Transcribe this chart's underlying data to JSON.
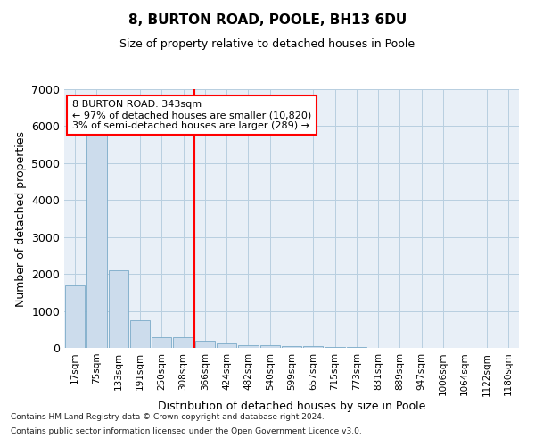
{
  "title1": "8, BURTON ROAD, POOLE, BH13 6DU",
  "title2": "Size of property relative to detached houses in Poole",
  "xlabel": "Distribution of detached houses by size in Poole",
  "ylabel": "Number of detached properties",
  "bin_labels": [
    "17sqm",
    "75sqm",
    "133sqm",
    "191sqm",
    "250sqm",
    "308sqm",
    "366sqm",
    "424sqm",
    "482sqm",
    "540sqm",
    "599sqm",
    "657sqm",
    "715sqm",
    "773sqm",
    "831sqm",
    "889sqm",
    "947sqm",
    "1006sqm",
    "1064sqm",
    "1122sqm",
    "1180sqm"
  ],
  "bar_values": [
    1700,
    5800,
    2100,
    750,
    300,
    280,
    200,
    120,
    80,
    65,
    50,
    38,
    28,
    18,
    12,
    8,
    6,
    4,
    3,
    2,
    1
  ],
  "bar_color": "#ccdcec",
  "bar_edge_color": "#7aaac8",
  "vline_x_idx": 5.5,
  "vline_color": "red",
  "annotation_line1": "8 BURTON ROAD: 343sqm",
  "annotation_line2": "← 97% of detached houses are smaller (10,820)",
  "annotation_line3": "3% of semi-detached houses are larger (289) →",
  "annotation_box_color": "red",
  "ylim": [
    0,
    7000
  ],
  "yticks": [
    0,
    1000,
    2000,
    3000,
    4000,
    5000,
    6000,
    7000
  ],
  "grid_color": "#b8cfe0",
  "bg_color": "#e8eff7",
  "footer1": "Contains HM Land Registry data © Crown copyright and database right 2024.",
  "footer2": "Contains public sector information licensed under the Open Government Licence v3.0."
}
